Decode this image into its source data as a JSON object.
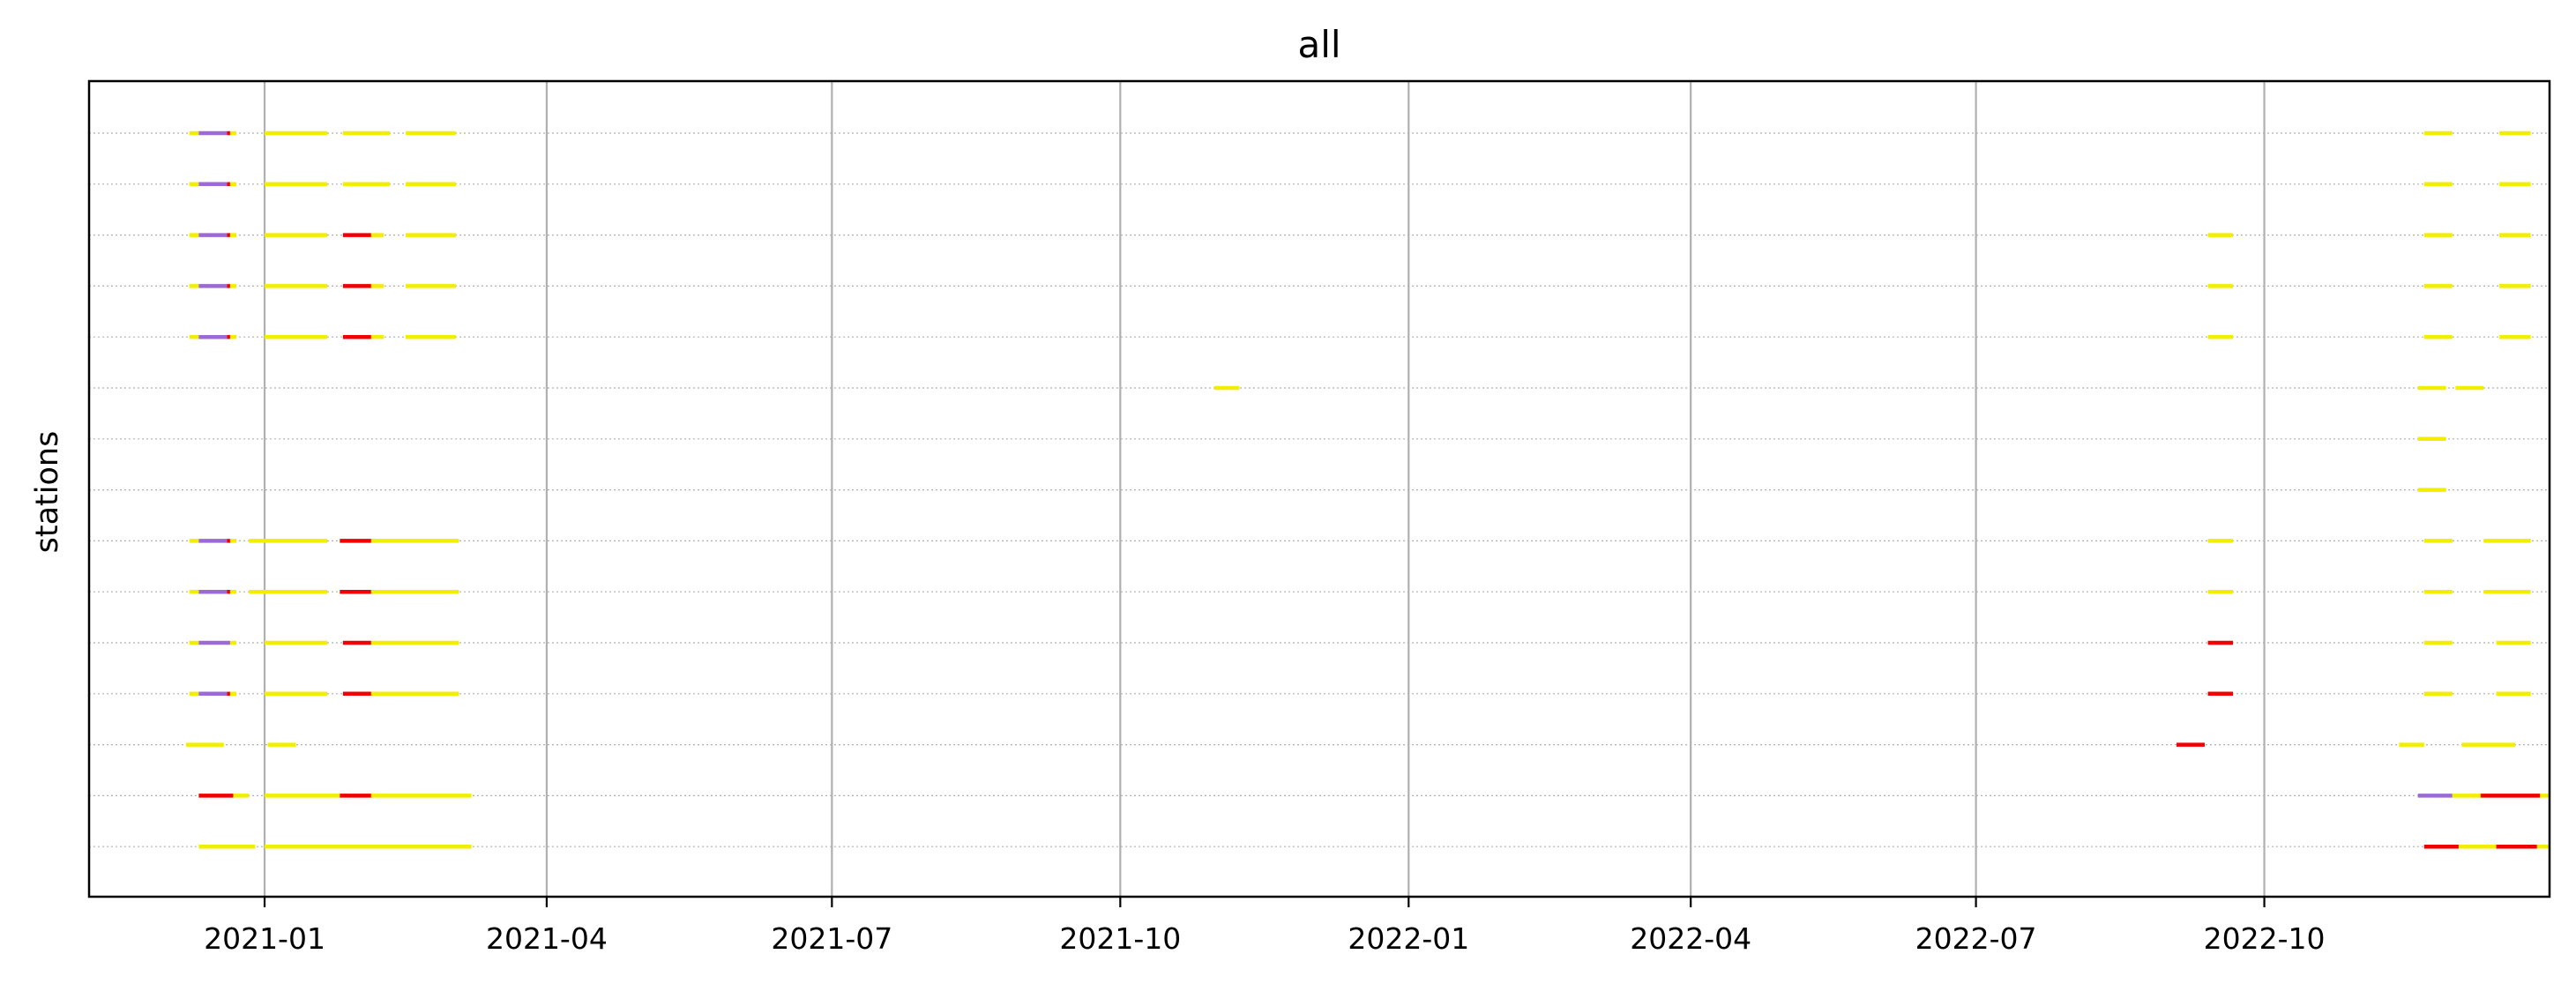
{
  "chart_data": {
    "type": "timeline",
    "title": "all",
    "xlabel": "",
    "ylabel": "stations",
    "x_tick_labels": [
      "2021-01",
      "2021-04",
      "2021-07",
      "2021-10",
      "2022-01",
      "2022-04",
      "2022-07",
      "2022-10"
    ],
    "xlim": [
      "2020-11-06",
      "2022-12-31"
    ],
    "y_tick_labels": [],
    "grid": {
      "x_major": true,
      "y_dotted": true
    },
    "status_colors": {
      "yellow": "#f2ee00",
      "red": "#f00000",
      "purple": "#9b6ad6"
    },
    "rows": [
      {
        "segments": [
          {
            "start": "2020-12-08",
            "end": "2020-12-11",
            "status": "yellow"
          },
          {
            "start": "2020-12-11",
            "end": "2020-12-20",
            "status": "purple"
          },
          {
            "start": "2020-12-20",
            "end": "2020-12-21",
            "status": "red"
          },
          {
            "start": "2020-12-21",
            "end": "2020-12-23",
            "status": "yellow"
          },
          {
            "start": "2021-01-01",
            "end": "2021-01-21",
            "status": "yellow"
          },
          {
            "start": "2021-01-26",
            "end": "2021-02-10",
            "status": "yellow"
          },
          {
            "start": "2021-02-15",
            "end": "2021-03-03",
            "status": "yellow"
          },
          {
            "start": "2022-11-21",
            "end": "2022-11-30",
            "status": "yellow"
          },
          {
            "start": "2022-12-15",
            "end": "2022-12-25",
            "status": "yellow"
          }
        ]
      },
      {
        "segments": [
          {
            "start": "2020-12-08",
            "end": "2020-12-11",
            "status": "yellow"
          },
          {
            "start": "2020-12-11",
            "end": "2020-12-20",
            "status": "purple"
          },
          {
            "start": "2020-12-20",
            "end": "2020-12-21",
            "status": "red"
          },
          {
            "start": "2020-12-21",
            "end": "2020-12-23",
            "status": "yellow"
          },
          {
            "start": "2021-01-01",
            "end": "2021-01-21",
            "status": "yellow"
          },
          {
            "start": "2021-01-26",
            "end": "2021-02-10",
            "status": "yellow"
          },
          {
            "start": "2021-02-15",
            "end": "2021-03-03",
            "status": "yellow"
          },
          {
            "start": "2022-11-21",
            "end": "2022-11-30",
            "status": "yellow"
          },
          {
            "start": "2022-12-15",
            "end": "2022-12-25",
            "status": "yellow"
          }
        ]
      },
      {
        "segments": [
          {
            "start": "2020-12-08",
            "end": "2020-12-11",
            "status": "yellow"
          },
          {
            "start": "2020-12-11",
            "end": "2020-12-20",
            "status": "purple"
          },
          {
            "start": "2020-12-20",
            "end": "2020-12-21",
            "status": "red"
          },
          {
            "start": "2020-12-21",
            "end": "2020-12-23",
            "status": "yellow"
          },
          {
            "start": "2021-01-01",
            "end": "2021-01-21",
            "status": "yellow"
          },
          {
            "start": "2021-01-26",
            "end": "2021-02-04",
            "status": "red"
          },
          {
            "start": "2021-02-04",
            "end": "2021-02-08",
            "status": "yellow"
          },
          {
            "start": "2021-02-15",
            "end": "2021-03-03",
            "status": "yellow"
          },
          {
            "start": "2022-09-13",
            "end": "2022-09-21",
            "status": "yellow"
          },
          {
            "start": "2022-11-21",
            "end": "2022-11-30",
            "status": "yellow"
          },
          {
            "start": "2022-12-15",
            "end": "2022-12-25",
            "status": "yellow"
          }
        ]
      },
      {
        "segments": [
          {
            "start": "2020-12-08",
            "end": "2020-12-11",
            "status": "yellow"
          },
          {
            "start": "2020-12-11",
            "end": "2020-12-20",
            "status": "purple"
          },
          {
            "start": "2020-12-20",
            "end": "2020-12-21",
            "status": "red"
          },
          {
            "start": "2020-12-21",
            "end": "2020-12-23",
            "status": "yellow"
          },
          {
            "start": "2021-01-01",
            "end": "2021-01-21",
            "status": "yellow"
          },
          {
            "start": "2021-01-26",
            "end": "2021-02-04",
            "status": "red"
          },
          {
            "start": "2021-02-04",
            "end": "2021-02-08",
            "status": "yellow"
          },
          {
            "start": "2021-02-15",
            "end": "2021-03-03",
            "status": "yellow"
          },
          {
            "start": "2022-09-13",
            "end": "2022-09-21",
            "status": "yellow"
          },
          {
            "start": "2022-11-21",
            "end": "2022-11-30",
            "status": "yellow"
          },
          {
            "start": "2022-12-15",
            "end": "2022-12-25",
            "status": "yellow"
          }
        ]
      },
      {
        "segments": [
          {
            "start": "2020-12-08",
            "end": "2020-12-11",
            "status": "yellow"
          },
          {
            "start": "2020-12-11",
            "end": "2020-12-20",
            "status": "purple"
          },
          {
            "start": "2020-12-20",
            "end": "2020-12-21",
            "status": "red"
          },
          {
            "start": "2020-12-21",
            "end": "2020-12-23",
            "status": "yellow"
          },
          {
            "start": "2021-01-01",
            "end": "2021-01-21",
            "status": "yellow"
          },
          {
            "start": "2021-01-26",
            "end": "2021-02-04",
            "status": "red"
          },
          {
            "start": "2021-02-04",
            "end": "2021-02-08",
            "status": "yellow"
          },
          {
            "start": "2021-02-15",
            "end": "2021-03-03",
            "status": "yellow"
          },
          {
            "start": "2022-09-13",
            "end": "2022-09-21",
            "status": "yellow"
          },
          {
            "start": "2022-11-21",
            "end": "2022-11-30",
            "status": "yellow"
          },
          {
            "start": "2022-12-15",
            "end": "2022-12-25",
            "status": "yellow"
          }
        ]
      },
      {
        "segments": [
          {
            "start": "2021-10-31",
            "end": "2021-11-08",
            "status": "yellow"
          },
          {
            "start": "2022-11-19",
            "end": "2022-11-28",
            "status": "yellow"
          },
          {
            "start": "2022-12-01",
            "end": "2022-12-10",
            "status": "yellow"
          }
        ]
      },
      {
        "segments": [
          {
            "start": "2022-11-19",
            "end": "2022-11-28",
            "status": "yellow"
          }
        ]
      },
      {
        "segments": [
          {
            "start": "2022-11-19",
            "end": "2022-11-28",
            "status": "yellow"
          }
        ]
      },
      {
        "segments": [
          {
            "start": "2020-12-08",
            "end": "2020-12-11",
            "status": "yellow"
          },
          {
            "start": "2020-12-11",
            "end": "2020-12-20",
            "status": "purple"
          },
          {
            "start": "2020-12-20",
            "end": "2020-12-21",
            "status": "red"
          },
          {
            "start": "2020-12-21",
            "end": "2020-12-23",
            "status": "yellow"
          },
          {
            "start": "2020-12-27",
            "end": "2021-01-21",
            "status": "yellow"
          },
          {
            "start": "2021-01-25",
            "end": "2021-02-04",
            "status": "red"
          },
          {
            "start": "2021-02-04",
            "end": "2021-03-04",
            "status": "yellow"
          },
          {
            "start": "2022-09-13",
            "end": "2022-09-21",
            "status": "yellow"
          },
          {
            "start": "2022-11-21",
            "end": "2022-11-30",
            "status": "yellow"
          },
          {
            "start": "2022-12-10",
            "end": "2022-12-25",
            "status": "yellow"
          }
        ]
      },
      {
        "segments": [
          {
            "start": "2020-12-08",
            "end": "2020-12-11",
            "status": "yellow"
          },
          {
            "start": "2020-12-11",
            "end": "2020-12-20",
            "status": "purple"
          },
          {
            "start": "2020-12-20",
            "end": "2020-12-21",
            "status": "red"
          },
          {
            "start": "2020-12-21",
            "end": "2020-12-23",
            "status": "yellow"
          },
          {
            "start": "2020-12-27",
            "end": "2021-01-21",
            "status": "yellow"
          },
          {
            "start": "2021-01-25",
            "end": "2021-02-04",
            "status": "red"
          },
          {
            "start": "2021-02-04",
            "end": "2021-03-04",
            "status": "yellow"
          },
          {
            "start": "2022-09-13",
            "end": "2022-09-21",
            "status": "yellow"
          },
          {
            "start": "2022-11-21",
            "end": "2022-11-30",
            "status": "yellow"
          },
          {
            "start": "2022-12-10",
            "end": "2022-12-25",
            "status": "yellow"
          }
        ]
      },
      {
        "segments": [
          {
            "start": "2020-12-08",
            "end": "2020-12-11",
            "status": "yellow"
          },
          {
            "start": "2020-12-11",
            "end": "2020-12-21",
            "status": "purple"
          },
          {
            "start": "2020-12-21",
            "end": "2020-12-23",
            "status": "yellow"
          },
          {
            "start": "2021-01-01",
            "end": "2021-01-21",
            "status": "yellow"
          },
          {
            "start": "2021-01-26",
            "end": "2021-02-04",
            "status": "red"
          },
          {
            "start": "2021-02-04",
            "end": "2021-03-04",
            "status": "yellow"
          },
          {
            "start": "2022-09-13",
            "end": "2022-09-21",
            "status": "red"
          },
          {
            "start": "2022-11-21",
            "end": "2022-11-30",
            "status": "yellow"
          },
          {
            "start": "2022-12-14",
            "end": "2022-12-25",
            "status": "yellow"
          }
        ]
      },
      {
        "segments": [
          {
            "start": "2020-12-08",
            "end": "2020-12-11",
            "status": "yellow"
          },
          {
            "start": "2020-12-11",
            "end": "2020-12-20",
            "status": "purple"
          },
          {
            "start": "2020-12-20",
            "end": "2020-12-21",
            "status": "red"
          },
          {
            "start": "2020-12-21",
            "end": "2020-12-23",
            "status": "yellow"
          },
          {
            "start": "2021-01-01",
            "end": "2021-01-21",
            "status": "yellow"
          },
          {
            "start": "2021-01-26",
            "end": "2021-02-04",
            "status": "red"
          },
          {
            "start": "2021-02-04",
            "end": "2021-03-04",
            "status": "yellow"
          },
          {
            "start": "2022-09-13",
            "end": "2022-09-21",
            "status": "red"
          },
          {
            "start": "2022-11-21",
            "end": "2022-11-30",
            "status": "yellow"
          },
          {
            "start": "2022-12-14",
            "end": "2022-12-25",
            "status": "yellow"
          }
        ]
      },
      {
        "segments": [
          {
            "start": "2020-12-07",
            "end": "2020-12-19",
            "status": "yellow"
          },
          {
            "start": "2021-01-02",
            "end": "2021-01-11",
            "status": "yellow"
          },
          {
            "start": "2022-09-03",
            "end": "2022-09-12",
            "status": "red"
          },
          {
            "start": "2022-11-13",
            "end": "2022-11-21",
            "status": "yellow"
          },
          {
            "start": "2022-12-03",
            "end": "2022-12-20",
            "status": "yellow"
          }
        ]
      },
      {
        "segments": [
          {
            "start": "2020-12-11",
            "end": "2020-12-22",
            "status": "red"
          },
          {
            "start": "2020-12-22",
            "end": "2020-12-27",
            "status": "yellow"
          },
          {
            "start": "2021-01-01",
            "end": "2021-01-25",
            "status": "yellow"
          },
          {
            "start": "2021-01-25",
            "end": "2021-02-04",
            "status": "red"
          },
          {
            "start": "2021-02-04",
            "end": "2021-03-08",
            "status": "yellow"
          },
          {
            "start": "2022-11-19",
            "end": "2022-11-30",
            "status": "purple"
          },
          {
            "start": "2022-11-30",
            "end": "2022-12-09",
            "status": "yellow"
          },
          {
            "start": "2022-12-09",
            "end": "2022-12-28",
            "status": "red"
          },
          {
            "start": "2022-12-28",
            "end": "2022-12-31",
            "status": "yellow"
          }
        ]
      },
      {
        "segments": [
          {
            "start": "2020-12-11",
            "end": "2020-12-29",
            "status": "yellow"
          },
          {
            "start": "2021-01-01",
            "end": "2021-03-08",
            "status": "yellow"
          },
          {
            "start": "2022-11-21",
            "end": "2022-12-02",
            "status": "red"
          },
          {
            "start": "2022-12-02",
            "end": "2022-12-14",
            "status": "yellow"
          },
          {
            "start": "2022-12-14",
            "end": "2022-12-27",
            "status": "red"
          },
          {
            "start": "2022-12-27",
            "end": "2022-12-31",
            "status": "yellow"
          }
        ]
      }
    ]
  }
}
